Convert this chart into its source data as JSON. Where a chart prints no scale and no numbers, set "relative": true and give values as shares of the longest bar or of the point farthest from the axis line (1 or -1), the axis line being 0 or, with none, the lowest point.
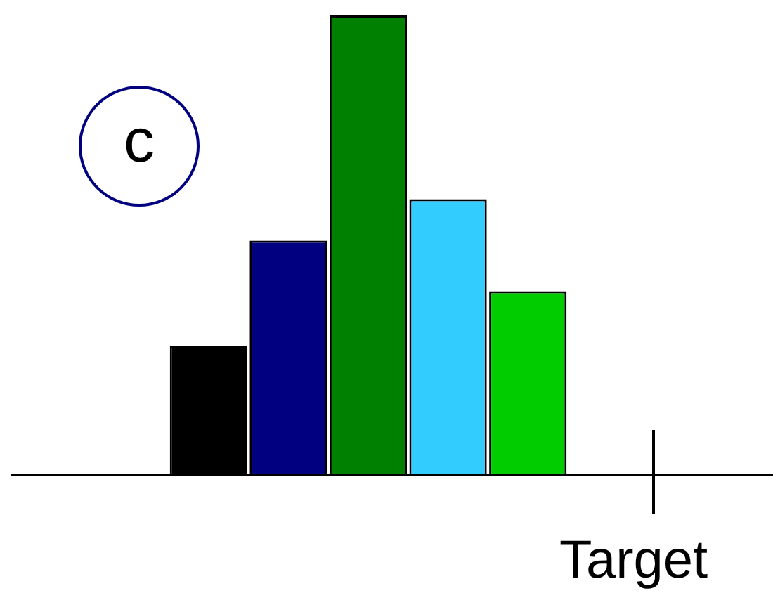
{
  "chart_data": {
    "type": "bar",
    "relative": true,
    "categories": [
      null,
      null,
      null,
      null,
      null
    ],
    "values": [
      0.28,
      0.51,
      1,
      0.6,
      0.4
    ],
    "colors": [
      "#000000",
      "#000080",
      "#008000",
      "#33ccff",
      "#00cc00"
    ],
    "annotations": [
      "c",
      "Target"
    ]
  }
}
